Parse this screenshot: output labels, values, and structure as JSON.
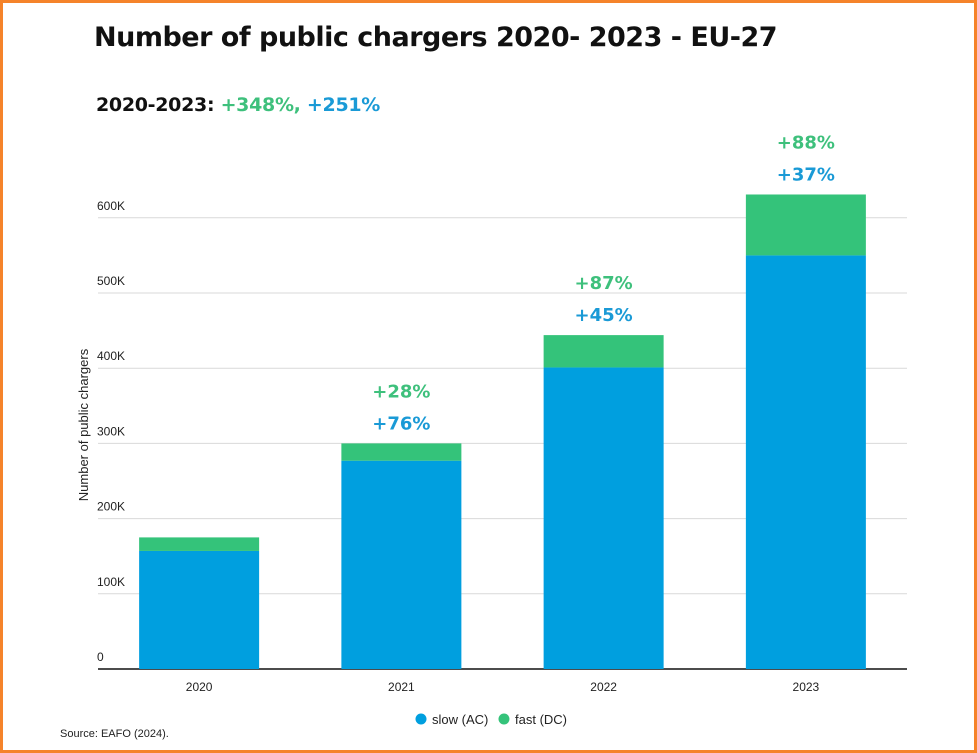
{
  "title": "Number of public chargers 2020- 2023 - EU-27",
  "subtitle": {
    "prefix": "2020-2023: ",
    "fast_growth": "+348%,",
    "slow_growth": " +251%"
  },
  "source": "Source: EAFO (2024).",
  "colors": {
    "slow": "#009fdf",
    "fast": "#34c37a",
    "slow_text": "#1a9ad6",
    "fast_text": "#3ec07c",
    "border": "#f5832a"
  },
  "chart_data": {
    "type": "bar",
    "stacked": true,
    "title": "Number of public chargers 2020- 2023 - EU-27",
    "xlabel": "",
    "ylabel": "Number of public chargers",
    "categories": [
      "2020",
      "2021",
      "2022",
      "2023"
    ],
    "series": [
      {
        "name": "slow (AC)",
        "values": [
          157000,
          277000,
          401000,
          550000
        ],
        "growth_labels": [
          "",
          "+76%",
          "+45%",
          "+37%"
        ]
      },
      {
        "name": "fast (DC)",
        "values": [
          18000,
          23000,
          43000,
          81000
        ],
        "growth_labels": [
          "",
          "+28%",
          "+87%",
          "+88%"
        ]
      }
    ],
    "ylim": [
      0,
      600000
    ],
    "yticks": [
      0,
      100000,
      200000,
      300000,
      400000,
      500000,
      600000
    ],
    "ytick_labels": [
      "0",
      "100K",
      "200K",
      "300K",
      "400K",
      "500K",
      "600K"
    ],
    "grid": true,
    "legend": "bottom"
  }
}
